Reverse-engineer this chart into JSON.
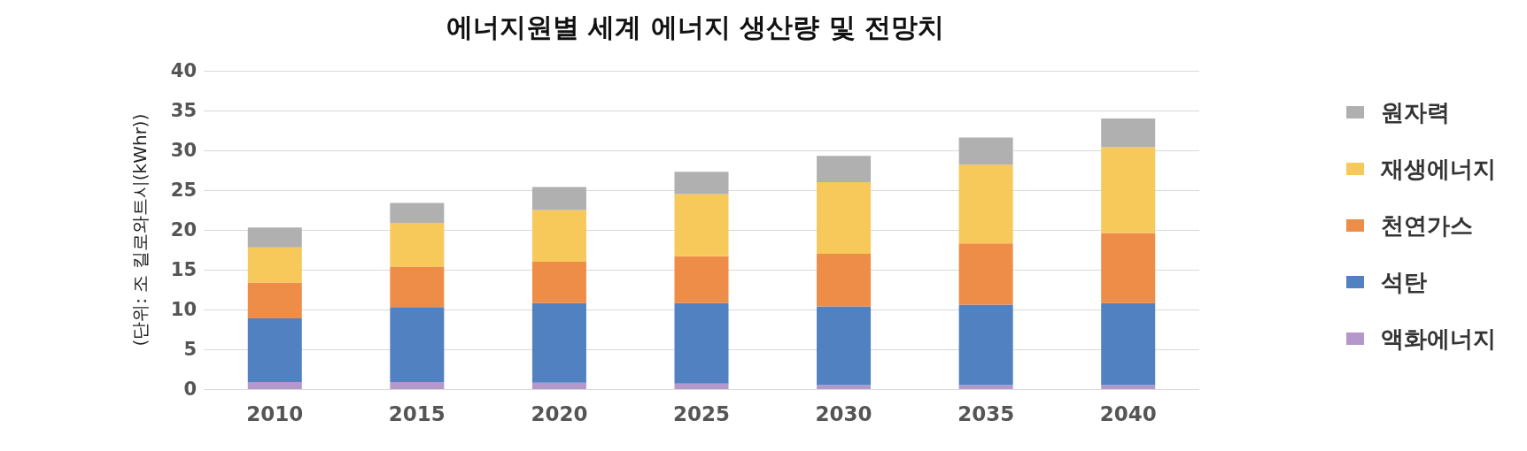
{
  "chart_data": {
    "type": "bar",
    "title": "에너지원별 세계 에너지 생산량 및 전망치",
    "ylabel": "(단위: 조 킬로와트시(kWhr))",
    "categories": [
      "2010",
      "2015",
      "2020",
      "2025",
      "2030",
      "2035",
      "2040"
    ],
    "stacked": true,
    "ylim": [
      0,
      40
    ],
    "yticks": [
      0,
      5,
      10,
      15,
      20,
      25,
      30,
      35,
      40
    ],
    "grid": "y",
    "legend": "right",
    "series": [
      {
        "name": "액화에너지",
        "color": "#b498cc",
        "values": [
          0.9,
          0.9,
          0.8,
          0.7,
          0.5,
          0.5,
          0.5
        ]
      },
      {
        "name": "석탄",
        "color": "#5281c1",
        "values": [
          8.0,
          9.4,
          10.0,
          10.1,
          9.9,
          10.1,
          10.3
        ]
      },
      {
        "name": "천연가스",
        "color": "#ee8d48",
        "values": [
          4.5,
          5.1,
          5.2,
          5.9,
          6.6,
          7.7,
          8.8
        ]
      },
      {
        "name": "재생에너지",
        "color": "#f7c85a",
        "values": [
          4.4,
          5.5,
          6.5,
          7.8,
          9.0,
          9.9,
          10.8
        ]
      },
      {
        "name": "원자력",
        "color": "#b0b0b0",
        "values": [
          2.5,
          2.5,
          2.9,
          2.8,
          3.3,
          3.4,
          3.6
        ]
      }
    ]
  }
}
